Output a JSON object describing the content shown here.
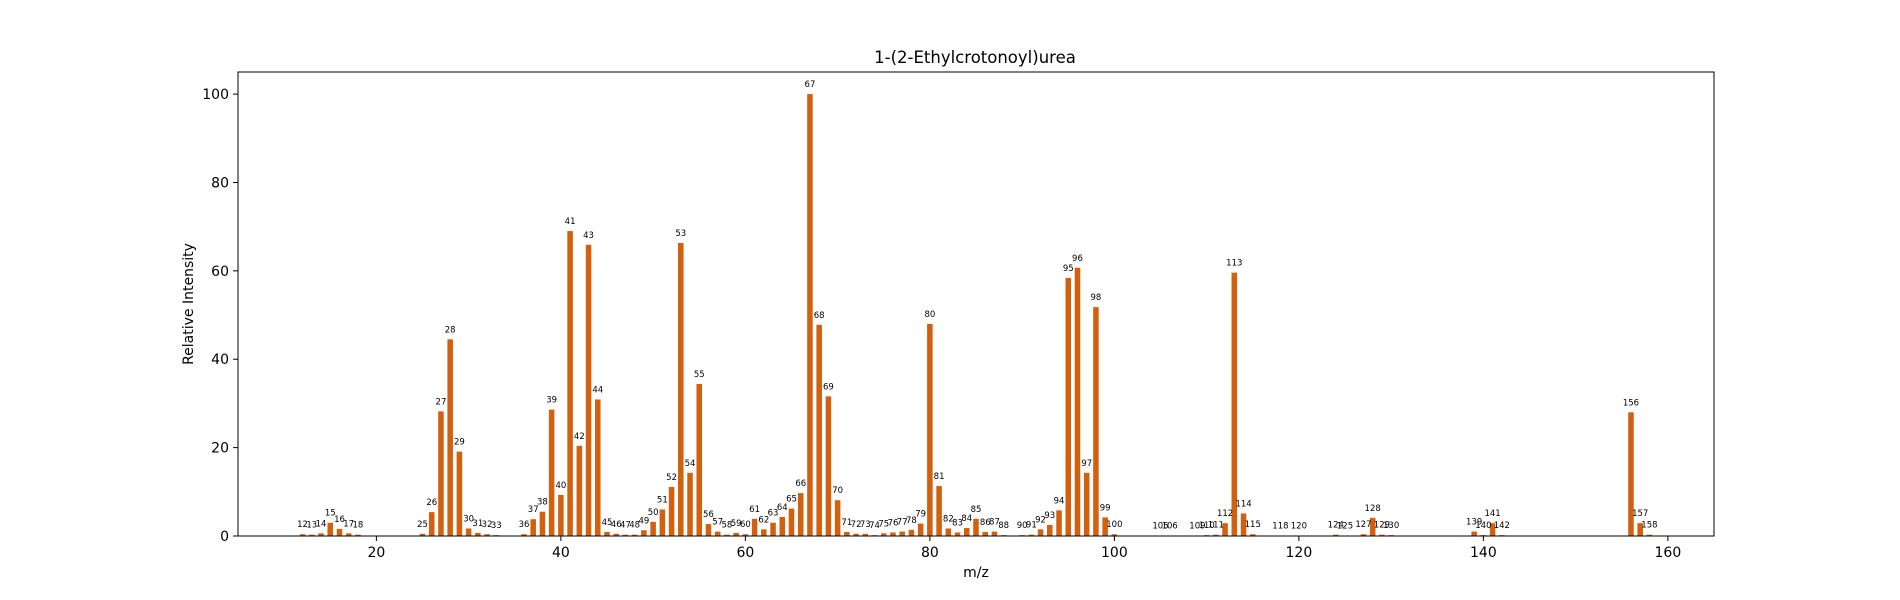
{
  "chart_data": {
    "type": "bar",
    "title": "1-(2-Ethylcrotonoyl)urea",
    "xlabel": "m/z",
    "ylabel": "Relative Intensity",
    "xlim": [
      5,
      165
    ],
    "ylim": [
      0,
      105
    ],
    "xticks": [
      20,
      40,
      60,
      80,
      100,
      120,
      140,
      160
    ],
    "yticks": [
      0,
      20,
      40,
      60,
      80,
      100
    ],
    "grid": false,
    "bar_color": "#d2600f",
    "peaks": [
      {
        "mz": 12,
        "intensity": 0.4
      },
      {
        "mz": 13,
        "intensity": 0.3
      },
      {
        "mz": 14,
        "intensity": 0.6
      },
      {
        "mz": 15,
        "intensity": 3.0
      },
      {
        "mz": 16,
        "intensity": 1.6
      },
      {
        "mz": 17,
        "intensity": 0.6
      },
      {
        "mz": 18,
        "intensity": 0.3
      },
      {
        "mz": 25,
        "intensity": 0.5
      },
      {
        "mz": 26,
        "intensity": 5.4
      },
      {
        "mz": 27,
        "intensity": 28.2
      },
      {
        "mz": 28,
        "intensity": 44.5
      },
      {
        "mz": 29,
        "intensity": 19.1
      },
      {
        "mz": 30,
        "intensity": 1.7
      },
      {
        "mz": 31,
        "intensity": 0.7
      },
      {
        "mz": 32,
        "intensity": 0.4
      },
      {
        "mz": 33,
        "intensity": 0.2
      },
      {
        "mz": 36,
        "intensity": 0.4
      },
      {
        "mz": 37,
        "intensity": 3.8
      },
      {
        "mz": 38,
        "intensity": 5.5
      },
      {
        "mz": 39,
        "intensity": 28.6
      },
      {
        "mz": 40,
        "intensity": 9.3
      },
      {
        "mz": 41,
        "intensity": 69.0
      },
      {
        "mz": 42,
        "intensity": 20.4
      },
      {
        "mz": 43,
        "intensity": 65.9
      },
      {
        "mz": 44,
        "intensity": 30.9
      },
      {
        "mz": 45,
        "intensity": 0.9
      },
      {
        "mz": 46,
        "intensity": 0.5
      },
      {
        "mz": 47,
        "intensity": 0.3
      },
      {
        "mz": 48,
        "intensity": 0.3
      },
      {
        "mz": 49,
        "intensity": 1.3
      },
      {
        "mz": 50,
        "intensity": 3.2
      },
      {
        "mz": 51,
        "intensity": 6.0
      },
      {
        "mz": 52,
        "intensity": 11.1
      },
      {
        "mz": 53,
        "intensity": 66.3
      },
      {
        "mz": 54,
        "intensity": 14.3
      },
      {
        "mz": 55,
        "intensity": 34.4
      },
      {
        "mz": 56,
        "intensity": 2.7
      },
      {
        "mz": 57,
        "intensity": 1.0
      },
      {
        "mz": 58,
        "intensity": 0.3
      },
      {
        "mz": 59,
        "intensity": 0.7
      },
      {
        "mz": 60,
        "intensity": 0.4
      },
      {
        "mz": 61,
        "intensity": 3.9
      },
      {
        "mz": 62,
        "intensity": 1.5
      },
      {
        "mz": 63,
        "intensity": 3.0
      },
      {
        "mz": 64,
        "intensity": 4.3
      },
      {
        "mz": 65,
        "intensity": 6.2
      },
      {
        "mz": 66,
        "intensity": 9.7
      },
      {
        "mz": 67,
        "intensity": 100.0
      },
      {
        "mz": 68,
        "intensity": 47.8
      },
      {
        "mz": 69,
        "intensity": 31.6
      },
      {
        "mz": 70,
        "intensity": 8.1
      },
      {
        "mz": 71,
        "intensity": 0.9
      },
      {
        "mz": 72,
        "intensity": 0.5
      },
      {
        "mz": 73,
        "intensity": 0.5
      },
      {
        "mz": 74,
        "intensity": 0.2
      },
      {
        "mz": 75,
        "intensity": 0.6
      },
      {
        "mz": 76,
        "intensity": 0.8
      },
      {
        "mz": 77,
        "intensity": 1.0
      },
      {
        "mz": 78,
        "intensity": 1.4
      },
      {
        "mz": 79,
        "intensity": 2.8
      },
      {
        "mz": 80,
        "intensity": 48.0
      },
      {
        "mz": 81,
        "intensity": 11.3
      },
      {
        "mz": 82,
        "intensity": 1.7
      },
      {
        "mz": 83,
        "intensity": 0.8
      },
      {
        "mz": 84,
        "intensity": 1.8
      },
      {
        "mz": 85,
        "intensity": 3.9
      },
      {
        "mz": 86,
        "intensity": 0.9
      },
      {
        "mz": 87,
        "intensity": 1.0
      },
      {
        "mz": 88,
        "intensity": 0.2
      },
      {
        "mz": 90,
        "intensity": 0.2
      },
      {
        "mz": 91,
        "intensity": 0.3
      },
      {
        "mz": 92,
        "intensity": 1.5
      },
      {
        "mz": 93,
        "intensity": 2.5
      },
      {
        "mz": 94,
        "intensity": 5.8
      },
      {
        "mz": 95,
        "intensity": 58.4
      },
      {
        "mz": 96,
        "intensity": 60.7
      },
      {
        "mz": 97,
        "intensity": 14.3
      },
      {
        "mz": 98,
        "intensity": 51.8
      },
      {
        "mz": 99,
        "intensity": 4.2
      },
      {
        "mz": 100,
        "intensity": 0.4
      },
      {
        "mz": 105,
        "intensity": 0.1
      },
      {
        "mz": 106,
        "intensity": 0.1
      },
      {
        "mz": 109,
        "intensity": 0.1
      },
      {
        "mz": 110,
        "intensity": 0.2
      },
      {
        "mz": 111,
        "intensity": 0.3
      },
      {
        "mz": 112,
        "intensity": 2.9
      },
      {
        "mz": 113,
        "intensity": 59.6
      },
      {
        "mz": 114,
        "intensity": 5.1
      },
      {
        "mz": 115,
        "intensity": 0.4
      },
      {
        "mz": 118,
        "intensity": 0.1
      },
      {
        "mz": 120,
        "intensity": 0.1
      },
      {
        "mz": 124,
        "intensity": 0.3
      },
      {
        "mz": 125,
        "intensity": 0.1
      },
      {
        "mz": 127,
        "intensity": 0.4
      },
      {
        "mz": 128,
        "intensity": 4.1
      },
      {
        "mz": 129,
        "intensity": 0.3
      },
      {
        "mz": 130,
        "intensity": 0.2
      },
      {
        "mz": 139,
        "intensity": 1.0
      },
      {
        "mz": 140,
        "intensity": 0.2
      },
      {
        "mz": 141,
        "intensity": 2.9
      },
      {
        "mz": 142,
        "intensity": 0.2
      },
      {
        "mz": 156,
        "intensity": 28.0
      },
      {
        "mz": 157,
        "intensity": 2.9
      },
      {
        "mz": 158,
        "intensity": 0.3
      }
    ]
  }
}
